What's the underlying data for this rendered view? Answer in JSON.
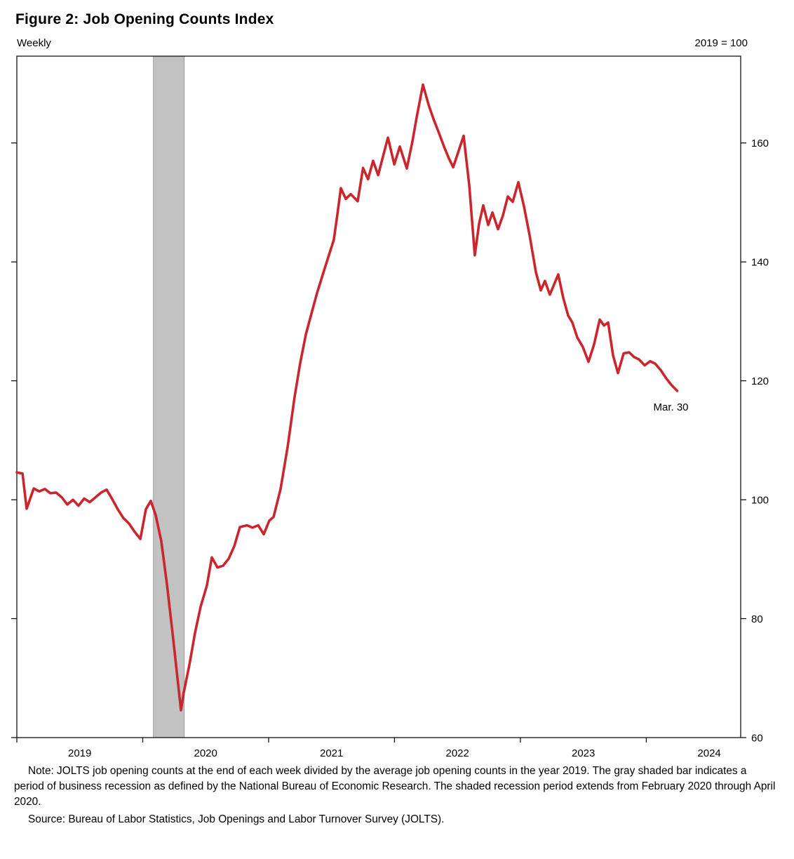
{
  "title": "Figure 2: Job Opening Counts Index",
  "frequency_label": "Weekly",
  "index_base_label": "2019 = 100",
  "note": "Note: JOLTS job opening counts at the end of each week divided by the average job opening counts in the year 2019. The gray shaded bar indicates a period of business recession as defined by the National Bureau of Economic Research. The shaded recession period extends from February 2020 through April 2020.",
  "source": "Source: Bureau of Labor Statistics, Job Openings and Labor Turnover Survey (JOLTS).",
  "colors": {
    "line": "#c9262d",
    "recession_fill": "#c2c2c2",
    "recession_edge": "#8f8f8f",
    "axis": "#000000"
  },
  "chart_data": {
    "type": "line",
    "title": "Figure 2: Job Opening Counts Index",
    "frequency_label": "Weekly",
    "index_label": "2019 = 100",
    "x_range": [
      2019.0,
      2024.75
    ],
    "y_range": [
      60,
      174.6
    ],
    "y_ticks": [
      60,
      80,
      100,
      120,
      140,
      160
    ],
    "x_year_labels": [
      2019,
      2020,
      2021,
      2022,
      2023,
      2024
    ],
    "grid": false,
    "legend": "none",
    "recession_band": {
      "start": 2020.085,
      "end": 2020.33,
      "note": "February 2020 through April 2020"
    },
    "end_annotation": {
      "label": "Mar. 30",
      "x": 2024.246,
      "y": 118.3
    },
    "series": [
      {
        "name": "Job opening counts index (2019 = 100)",
        "points": [
          [
            2019.0,
            104.6
          ],
          [
            2019.045,
            104.4
          ],
          [
            2019.078,
            98.5
          ],
          [
            2019.134,
            101.9
          ],
          [
            2019.178,
            101.4
          ],
          [
            2019.223,
            101.8
          ],
          [
            2019.267,
            101.1
          ],
          [
            2019.312,
            101.2
          ],
          [
            2019.357,
            100.4
          ],
          [
            2019.401,
            99.2
          ],
          [
            2019.446,
            100.0
          ],
          [
            2019.49,
            99.0
          ],
          [
            2019.535,
            100.2
          ],
          [
            2019.579,
            99.6
          ],
          [
            2019.624,
            100.4
          ],
          [
            2019.669,
            101.2
          ],
          [
            2019.713,
            101.7
          ],
          [
            2019.758,
            100.1
          ],
          [
            2019.802,
            98.4
          ],
          [
            2019.847,
            96.9
          ],
          [
            2019.891,
            96.0
          ],
          [
            2019.936,
            94.6
          ],
          [
            2019.981,
            93.4
          ],
          [
            2020.025,
            98.4
          ],
          [
            2020.064,
            99.8
          ],
          [
            2020.103,
            97.4
          ],
          [
            2020.148,
            93.0
          ],
          [
            2020.192,
            85.9
          ],
          [
            2020.237,
            77.6
          ],
          [
            2020.27,
            71.2
          ],
          [
            2020.304,
            64.6
          ],
          [
            2020.326,
            67.6
          ],
          [
            2020.371,
            72.3
          ],
          [
            2020.415,
            77.6
          ],
          [
            2020.46,
            82.0
          ],
          [
            2020.51,
            85.6
          ],
          [
            2020.549,
            90.3
          ],
          [
            2020.594,
            88.6
          ],
          [
            2020.638,
            88.9
          ],
          [
            2020.683,
            90.1
          ],
          [
            2020.727,
            92.2
          ],
          [
            2020.772,
            95.4
          ],
          [
            2020.828,
            95.7
          ],
          [
            2020.872,
            95.3
          ],
          [
            2020.917,
            95.7
          ],
          [
            2020.961,
            94.2
          ],
          [
            2021.006,
            96.5
          ],
          [
            2021.039,
            97.1
          ],
          [
            2021.095,
            101.8
          ],
          [
            2021.151,
            108.9
          ],
          [
            2021.206,
            117.2
          ],
          [
            2021.251,
            123.0
          ],
          [
            2021.296,
            127.8
          ],
          [
            2021.34,
            131.3
          ],
          [
            2021.385,
            134.8
          ],
          [
            2021.429,
            137.8
          ],
          [
            2021.474,
            140.8
          ],
          [
            2021.518,
            143.7
          ],
          [
            2021.546,
            148.0
          ],
          [
            2021.574,
            152.4
          ],
          [
            2021.613,
            150.6
          ],
          [
            2021.652,
            151.4
          ],
          [
            2021.708,
            150.2
          ],
          [
            2021.75,
            155.8
          ],
          [
            2021.79,
            153.9
          ],
          [
            2021.83,
            157.0
          ],
          [
            2021.87,
            154.6
          ],
          [
            2021.948,
            160.9
          ],
          [
            2021.998,
            156.4
          ],
          [
            2022.042,
            159.4
          ],
          [
            2022.098,
            155.7
          ],
          [
            2022.142,
            160.2
          ],
          [
            2022.176,
            164.3
          ],
          [
            2022.226,
            169.8
          ],
          [
            2022.271,
            166.4
          ],
          [
            2022.31,
            164.0
          ],
          [
            2022.349,
            161.9
          ],
          [
            2022.393,
            159.4
          ],
          [
            2022.432,
            157.4
          ],
          [
            2022.466,
            155.9
          ],
          [
            2022.505,
            158.4
          ],
          [
            2022.549,
            161.2
          ],
          [
            2022.594,
            152.9
          ],
          [
            2022.638,
            141.1
          ],
          [
            2022.672,
            146.4
          ],
          [
            2022.705,
            149.5
          ],
          [
            2022.744,
            146.2
          ],
          [
            2022.778,
            148.3
          ],
          [
            2022.822,
            145.5
          ],
          [
            2022.861,
            147.8
          ],
          [
            2022.9,
            151.0
          ],
          [
            2022.939,
            150.1
          ],
          [
            2022.984,
            153.4
          ],
          [
            2023.028,
            149.4
          ],
          [
            2023.073,
            144.5
          ],
          [
            2023.123,
            138.3
          ],
          [
            2023.162,
            135.2
          ],
          [
            2023.195,
            136.8
          ],
          [
            2023.234,
            134.5
          ],
          [
            2023.301,
            137.9
          ],
          [
            2023.34,
            134.0
          ],
          [
            2023.379,
            131.0
          ],
          [
            2023.413,
            129.8
          ],
          [
            2023.452,
            127.3
          ],
          [
            2023.496,
            125.7
          ],
          [
            2023.541,
            123.2
          ],
          [
            2023.585,
            126.1
          ],
          [
            2023.63,
            130.3
          ],
          [
            2023.664,
            129.3
          ],
          [
            2023.697,
            129.8
          ],
          [
            2023.736,
            124.3
          ],
          [
            2023.775,
            121.3
          ],
          [
            2023.82,
            124.6
          ],
          [
            2023.864,
            124.8
          ],
          [
            2023.903,
            124.0
          ],
          [
            2023.942,
            123.6
          ],
          [
            2023.987,
            122.6
          ],
          [
            2024.031,
            123.3
          ],
          [
            2024.07,
            122.9
          ],
          [
            2024.115,
            121.8
          ],
          [
            2024.159,
            120.4
          ],
          [
            2024.2,
            119.3
          ],
          [
            2024.246,
            118.3
          ]
        ]
      }
    ]
  }
}
